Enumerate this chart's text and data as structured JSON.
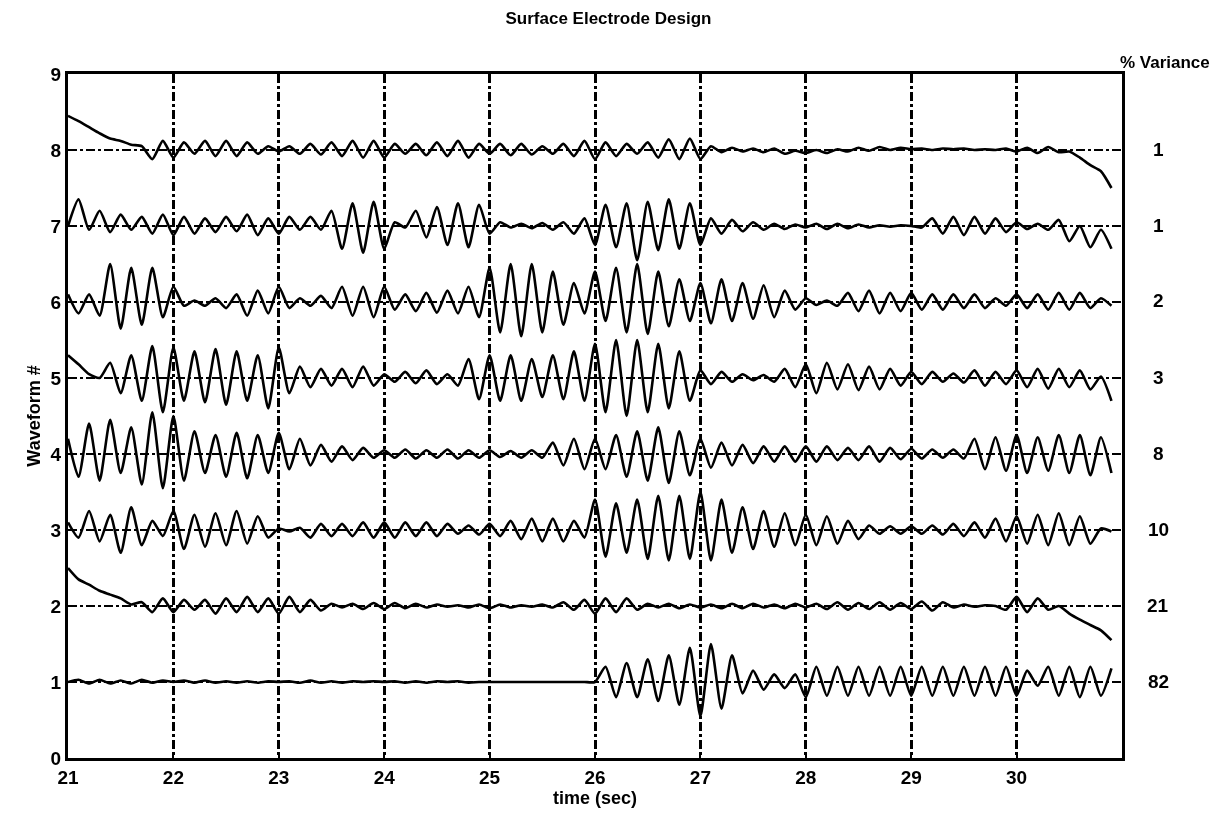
{
  "chart_data": {
    "type": "line",
    "title": "Surface Electrode Design",
    "xlabel": "time (sec)",
    "ylabel": "Waveform #",
    "legend_title": "% Variance",
    "xlim": [
      21,
      31
    ],
    "xticks": [
      21,
      22,
      23,
      24,
      25,
      26,
      27,
      28,
      29,
      30
    ],
    "ylim": [
      0,
      9
    ],
    "yticks": [
      0,
      1,
      2,
      3,
      4,
      5,
      6,
      7,
      8,
      9
    ],
    "grid": true,
    "legend": false,
    "line_style": "solid",
    "x": [
      21.0,
      21.1,
      21.2,
      21.3,
      21.4,
      21.5,
      21.6,
      21.7,
      21.8,
      21.9,
      22.0,
      22.1,
      22.2,
      22.3,
      22.4,
      22.5,
      22.6,
      22.7,
      22.8,
      22.9,
      23.0,
      23.1,
      23.2,
      23.3,
      23.4,
      23.5,
      23.6,
      23.7,
      23.8,
      23.9,
      24.0,
      24.1,
      24.2,
      24.3,
      24.4,
      24.5,
      24.6,
      24.7,
      24.8,
      24.9,
      25.0,
      25.1,
      25.2,
      25.3,
      25.4,
      25.5,
      25.6,
      25.7,
      25.8,
      25.9,
      26.0,
      26.1,
      26.2,
      26.3,
      26.4,
      26.5,
      26.6,
      26.7,
      26.8,
      26.9,
      27.0,
      27.1,
      27.2,
      27.3,
      27.4,
      27.5,
      27.6,
      27.7,
      27.8,
      27.9,
      28.0,
      28.1,
      28.2,
      28.3,
      28.4,
      28.5,
      28.6,
      28.7,
      28.8,
      28.9,
      29.0,
      29.1,
      29.2,
      29.3,
      29.4,
      29.5,
      29.6,
      29.7,
      29.8,
      29.9,
      30.0,
      30.1,
      30.2,
      30.3,
      30.4,
      30.5,
      30.6,
      30.7,
      30.8,
      30.9
    ],
    "series": [
      {
        "name": "1",
        "color": "#000000",
        "values": [
          8.45,
          8.38,
          8.3,
          8.22,
          8.15,
          8.12,
          8.07,
          8.05,
          7.88,
          8.12,
          7.9,
          8.1,
          7.95,
          8.12,
          7.92,
          8.12,
          7.92,
          8.1,
          7.95,
          8.05,
          7.98,
          8.05,
          7.95,
          8.08,
          7.94,
          8.1,
          7.92,
          8.12,
          7.9,
          8.12,
          7.9,
          8.08,
          7.95,
          8.08,
          7.93,
          8.1,
          7.92,
          8.12,
          7.9,
          8.08,
          7.95,
          8.08,
          7.93,
          8.08,
          7.94,
          8.05,
          7.95,
          8.08,
          7.92,
          8.12,
          7.88,
          8.1,
          7.92,
          8.08,
          7.95,
          8.1,
          7.9,
          8.14,
          7.88,
          8.15,
          7.88,
          8.05,
          7.97,
          8.03,
          7.98,
          8.02,
          7.97,
          8.02,
          7.95,
          7.99,
          7.96,
          8.0,
          7.96,
          8.01,
          7.98,
          8.03,
          7.99,
          8.04,
          8.0,
          8.03,
          8.01,
          8.02,
          8.0,
          8.02,
          8.01,
          8.02,
          8.0,
          8.01,
          8.0,
          8.02,
          7.98,
          8.03,
          7.96,
          8.04,
          7.97,
          7.98,
          7.9,
          7.8,
          7.72,
          7.5
        ]
      },
      {
        "name": "1",
        "color": "#000000",
        "values": [
          7.0,
          7.35,
          6.95,
          7.2,
          6.92,
          7.15,
          6.95,
          7.12,
          6.9,
          7.15,
          6.88,
          7.12,
          6.9,
          7.1,
          6.92,
          7.12,
          6.93,
          7.15,
          6.88,
          7.1,
          6.9,
          7.12,
          6.95,
          7.12,
          6.95,
          7.2,
          6.7,
          7.3,
          6.65,
          7.32,
          6.7,
          7.05,
          6.98,
          7.2,
          6.85,
          7.25,
          6.75,
          7.3,
          6.72,
          7.28,
          6.9,
          7.05,
          6.98,
          7.03,
          6.97,
          7.04,
          6.95,
          7.05,
          6.9,
          7.1,
          6.75,
          7.28,
          6.72,
          7.3,
          6.55,
          7.32,
          6.68,
          7.35,
          6.7,
          7.3,
          6.75,
          7.1,
          6.9,
          7.08,
          6.93,
          7.05,
          6.95,
          7.03,
          6.96,
          7.02,
          6.98,
          7.03,
          6.96,
          7.03,
          6.97,
          7.02,
          6.98,
          7.01,
          6.99,
          7.01,
          7.0,
          6.98,
          7.1,
          6.9,
          7.12,
          6.88,
          7.12,
          6.9,
          7.1,
          6.92,
          7.05,
          6.96,
          7.03,
          6.95,
          7.08,
          6.8,
          7.0,
          6.72,
          6.95,
          6.7
        ]
      },
      {
        "name": "2",
        "color": "#000000",
        "values": [
          6.1,
          5.85,
          6.1,
          5.82,
          6.5,
          5.65,
          6.45,
          5.7,
          6.45,
          5.8,
          6.2,
          5.95,
          6.02,
          5.95,
          6.05,
          5.92,
          6.1,
          5.82,
          6.15,
          5.85,
          6.2,
          5.92,
          6.05,
          5.95,
          6.08,
          5.92,
          6.2,
          5.82,
          6.2,
          5.8,
          6.2,
          5.9,
          6.1,
          5.88,
          6.12,
          5.86,
          6.15,
          5.85,
          6.2,
          5.8,
          6.45,
          5.6,
          6.5,
          5.55,
          6.5,
          5.6,
          6.4,
          5.7,
          6.25,
          5.85,
          6.4,
          5.75,
          6.45,
          5.6,
          6.5,
          5.58,
          6.4,
          5.68,
          6.3,
          5.75,
          6.25,
          5.72,
          6.3,
          5.75,
          6.25,
          5.78,
          6.22,
          5.8,
          6.15,
          5.9,
          6.05,
          5.96,
          6.02,
          5.95,
          6.12,
          5.88,
          6.15,
          5.85,
          6.12,
          5.88,
          6.12,
          5.9,
          6.1,
          5.9,
          6.1,
          5.92,
          6.1,
          5.92,
          6.05,
          5.95,
          6.1,
          5.92,
          6.1,
          5.9,
          6.12,
          5.9,
          6.12,
          5.92,
          6.05,
          5.95
        ]
      },
      {
        "name": "3",
        "color": "#000000",
        "values": [
          5.3,
          5.18,
          5.05,
          5.0,
          5.2,
          4.8,
          5.3,
          4.7,
          5.42,
          4.55,
          5.4,
          4.7,
          5.35,
          4.68,
          5.38,
          4.65,
          5.35,
          4.7,
          5.3,
          4.6,
          5.4,
          4.8,
          5.15,
          4.88,
          5.12,
          4.9,
          5.12,
          4.88,
          5.15,
          4.9,
          5.05,
          4.95,
          5.08,
          4.93,
          5.1,
          4.92,
          5.05,
          4.9,
          5.25,
          4.72,
          5.3,
          4.7,
          5.3,
          4.7,
          5.25,
          4.75,
          5.3,
          4.72,
          5.35,
          4.7,
          5.45,
          4.55,
          5.5,
          4.5,
          5.5,
          4.55,
          5.45,
          4.6,
          5.35,
          4.7,
          5.1,
          4.92,
          5.08,
          4.95,
          5.05,
          4.97,
          5.04,
          4.95,
          5.12,
          4.88,
          5.18,
          4.8,
          5.2,
          4.85,
          5.18,
          4.84,
          5.15,
          4.85,
          5.12,
          4.9,
          5.08,
          4.92,
          5.08,
          4.95,
          5.06,
          4.94,
          5.1,
          4.9,
          5.08,
          4.92,
          5.1,
          4.88,
          5.12,
          4.86,
          5.12,
          4.88,
          5.1,
          4.85,
          5.02,
          4.7
        ]
      },
      {
        "name": "8",
        "color": "#000000",
        "values": [
          4.2,
          3.7,
          4.4,
          3.65,
          4.45,
          3.75,
          4.35,
          3.6,
          4.55,
          3.55,
          4.5,
          3.65,
          4.3,
          3.75,
          4.25,
          3.7,
          4.28,
          3.68,
          4.25,
          3.75,
          4.28,
          3.8,
          4.2,
          3.85,
          4.12,
          3.9,
          4.1,
          3.92,
          4.08,
          3.95,
          4.05,
          3.95,
          4.06,
          3.94,
          4.05,
          3.95,
          4.06,
          3.94,
          4.05,
          3.95,
          4.05,
          3.96,
          4.04,
          3.95,
          4.05,
          3.95,
          4.15,
          3.85,
          4.2,
          3.8,
          4.2,
          3.8,
          4.25,
          3.7,
          4.3,
          3.65,
          4.35,
          3.62,
          4.3,
          3.72,
          4.2,
          3.82,
          4.15,
          3.85,
          4.12,
          3.88,
          4.1,
          3.9,
          4.1,
          3.9,
          4.1,
          3.9,
          4.1,
          3.92,
          4.08,
          3.92,
          4.1,
          3.9,
          4.08,
          3.93,
          4.07,
          3.94,
          4.06,
          3.95,
          4.06,
          3.94,
          4.2,
          3.8,
          4.22,
          3.78,
          4.25,
          3.75,
          4.22,
          3.78,
          4.25,
          3.75,
          4.25,
          3.72,
          4.22,
          3.75
        ]
      },
      {
        "name": "10",
        "color": "#000000",
        "values": [
          3.1,
          2.9,
          3.25,
          2.85,
          3.2,
          2.7,
          3.3,
          2.8,
          3.12,
          2.92,
          3.25,
          2.75,
          3.2,
          2.78,
          3.22,
          2.8,
          3.25,
          2.82,
          3.18,
          2.9,
          3.02,
          2.98,
          3.03,
          2.9,
          3.08,
          2.92,
          3.08,
          2.92,
          3.1,
          2.9,
          3.1,
          2.9,
          3.1,
          2.92,
          3.1,
          2.92,
          3.08,
          2.95,
          3.06,
          2.94,
          3.08,
          2.92,
          3.12,
          2.88,
          3.15,
          2.85,
          3.15,
          2.85,
          3.12,
          2.9,
          3.4,
          2.65,
          3.35,
          2.7,
          3.4,
          2.62,
          3.45,
          2.6,
          3.45,
          2.62,
          3.5,
          2.6,
          3.4,
          2.7,
          3.3,
          2.75,
          3.25,
          2.78,
          3.22,
          2.8,
          3.2,
          2.8,
          3.18,
          2.82,
          3.12,
          2.88,
          3.06,
          2.95,
          3.05,
          2.95,
          3.05,
          2.95,
          3.06,
          2.94,
          3.08,
          2.92,
          3.1,
          2.9,
          3.15,
          2.85,
          3.18,
          2.82,
          3.2,
          2.8,
          3.22,
          2.8,
          3.18,
          2.82,
          3.02,
          2.98
        ]
      },
      {
        "name": "21",
        "color": "#000000",
        "values": [
          2.5,
          2.35,
          2.28,
          2.2,
          2.15,
          2.1,
          2.02,
          2.05,
          1.92,
          2.1,
          1.92,
          2.08,
          1.95,
          2.08,
          1.9,
          2.1,
          1.92,
          2.12,
          1.92,
          2.1,
          1.9,
          2.12,
          1.92,
          2.08,
          1.94,
          2.03,
          1.98,
          2.03,
          1.96,
          2.04,
          1.96,
          2.04,
          1.97,
          2.03,
          1.98,
          2.02,
          1.99,
          2.01,
          1.98,
          2.02,
          1.97,
          2.02,
          1.98,
          2.01,
          1.99,
          2.02,
          1.98,
          2.05,
          1.95,
          2.08,
          1.9,
          2.1,
          1.92,
          2.1,
          1.95,
          2.03,
          1.98,
          2.03,
          1.97,
          2.02,
          1.98,
          2.02,
          1.97,
          2.03,
          1.97,
          2.03,
          1.98,
          2.02,
          1.97,
          2.03,
          1.98,
          2.03,
          1.96,
          2.05,
          1.95,
          2.04,
          1.96,
          2.05,
          1.95,
          2.04,
          1.96,
          2.06,
          1.94,
          2.05,
          1.98,
          2.02,
          1.99,
          2.01,
          2.0,
          1.95,
          2.12,
          1.92,
          2.1,
          1.95,
          2.0,
          1.9,
          1.82,
          1.75,
          1.68,
          1.55
        ]
      },
      {
        "name": "82",
        "color": "#000000",
        "values": [
          1.0,
          1.03,
          0.98,
          1.03,
          0.98,
          1.02,
          0.98,
          1.03,
          0.99,
          1.02,
          1.0,
          1.02,
          0.99,
          1.02,
          0.99,
          1.01,
          0.99,
          1.01,
          0.99,
          1.01,
          1.0,
          1.01,
          0.99,
          1.02,
          0.99,
          1.01,
          0.99,
          1.01,
          1.0,
          1.01,
          1.0,
          1.01,
          0.99,
          1.01,
          0.99,
          1.01,
          1.0,
          1.01,
          0.99,
          1.0,
          1.0,
          1.0,
          1.0,
          1.0,
          1.0,
          1.0,
          1.0,
          1.0,
          1.0,
          1.0,
          1.0,
          1.2,
          0.8,
          1.25,
          0.8,
          1.3,
          0.75,
          1.35,
          0.7,
          1.45,
          0.55,
          1.5,
          0.65,
          1.35,
          0.85,
          1.15,
          0.9,
          1.1,
          0.92,
          1.1,
          0.8,
          1.2,
          0.82,
          1.2,
          0.82,
          1.2,
          0.82,
          1.2,
          0.82,
          1.2,
          0.82,
          1.2,
          0.82,
          1.2,
          0.82,
          1.2,
          0.82,
          1.2,
          0.82,
          1.2,
          0.82,
          1.15,
          0.95,
          1.2,
          0.82,
          1.2,
          0.8,
          1.2,
          0.82,
          1.18
        ]
      }
    ]
  }
}
